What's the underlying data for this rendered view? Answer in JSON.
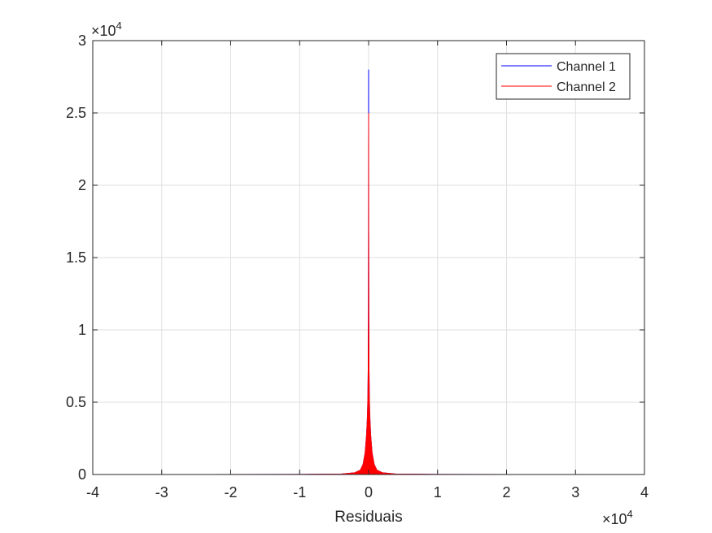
{
  "chart_data": {
    "type": "area",
    "title": "",
    "xlabel": "Residuais",
    "ylabel": "",
    "x_multiplier": {
      "base": "×10",
      "exponent": "4"
    },
    "y_multiplier": {
      "base": "×10",
      "exponent": "4"
    },
    "xlim": [
      -40000,
      40000
    ],
    "ylim": [
      0,
      30000
    ],
    "xticks": [
      -40000,
      -30000,
      -20000,
      -10000,
      0,
      10000,
      20000,
      30000,
      40000
    ],
    "xtick_labels": [
      "-4",
      "-3",
      "-2",
      "-1",
      "0",
      "1",
      "2",
      "3",
      "4"
    ],
    "yticks": [
      0,
      5000,
      10000,
      15000,
      20000,
      25000,
      30000
    ],
    "ytick_labels": [
      "0",
      "0.5",
      "1",
      "1.5",
      "2",
      "2.5",
      "3"
    ],
    "grid": true,
    "legend_position": "top-right",
    "series": [
      {
        "name": "Channel 1",
        "color": "#0000ff",
        "x": [
          -32768,
          -10000,
          -4000,
          -2000,
          -1200,
          -800,
          -500,
          -300,
          -200,
          -150,
          -100,
          -60,
          -30,
          -10,
          0,
          10,
          30,
          60,
          100,
          150,
          200,
          300,
          500,
          800,
          1200,
          2000,
          4000,
          10000,
          32767
        ],
        "y": [
          0,
          5,
          30,
          120,
          300,
          700,
          1500,
          2700,
          3700,
          4400,
          5400,
          7200,
          11000,
          17000,
          28000,
          17000,
          11000,
          7200,
          5400,
          4400,
          3700,
          2700,
          1500,
          700,
          300,
          120,
          30,
          5,
          0
        ]
      },
      {
        "name": "Channel 2",
        "color": "#ff0000",
        "x": [
          -32768,
          -10000,
          -4000,
          -2000,
          -1200,
          -800,
          -500,
          -300,
          -200,
          -150,
          -100,
          -60,
          -30,
          -10,
          0,
          10,
          30,
          60,
          100,
          150,
          200,
          300,
          500,
          800,
          1200,
          2000,
          4000,
          10000,
          32767
        ],
        "y": [
          0,
          5,
          30,
          120,
          300,
          700,
          1500,
          2700,
          3700,
          4400,
          5400,
          7200,
          11000,
          17000,
          25000,
          17000,
          11000,
          7200,
          5400,
          4400,
          3700,
          2700,
          1500,
          700,
          300,
          120,
          30,
          5,
          0
        ]
      }
    ]
  }
}
